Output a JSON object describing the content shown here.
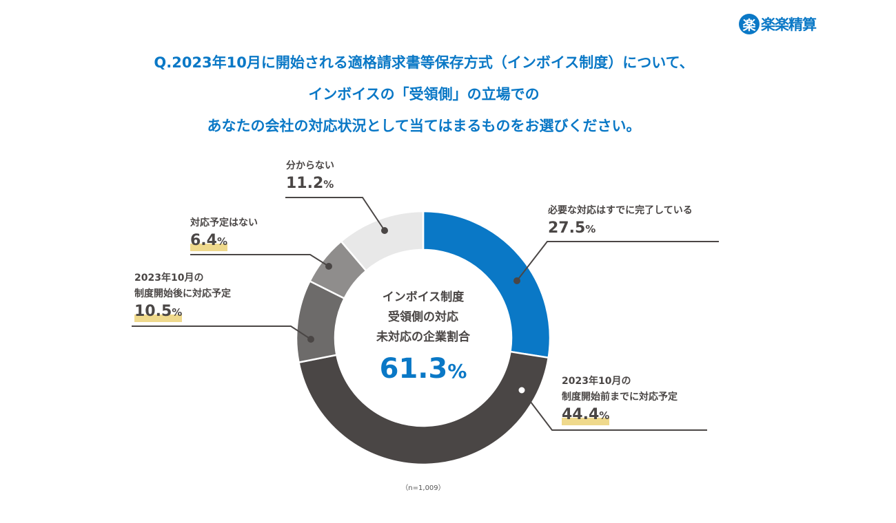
{
  "logo": {
    "mark": "楽",
    "text": "楽楽精算"
  },
  "title_lines": [
    "Q.2023年10月に開始される適格請求書等保存方式（インボイス制度）について、",
    "インボイスの「受領側」の立場での",
    "あなたの会社の対応状況として当てはまるものをお選びください。"
  ],
  "center": {
    "lines": [
      "インボイス制度",
      "受領側の対応",
      "未対応の企業割合"
    ],
    "value": "61.3",
    "unit": "%"
  },
  "note": "（n=1,009）",
  "chart_data": {
    "type": "pie",
    "donut": true,
    "start": "top",
    "direction": "clockwise",
    "unit": "%",
    "slices": [
      {
        "label_lines": [
          "必要な対応はすでに完了している"
        ],
        "value": 27.5,
        "color": "#0a78c6",
        "highlight": false
      },
      {
        "label_lines": [
          "2023年10月の",
          "制度開始前までに対応予定"
        ],
        "value": 44.4,
        "color": "#4a4645",
        "highlight": true
      },
      {
        "label_lines": [
          "2023年10月の",
          "制度開始後に対応予定"
        ],
        "value": 10.5,
        "color": "#6d6b6a",
        "highlight": true
      },
      {
        "label_lines": [
          "対応予定はない"
        ],
        "value": 6.4,
        "color": "#8f8d8c",
        "highlight": true
      },
      {
        "label_lines": [
          "分からない"
        ],
        "value": 11.2,
        "color": "#e8e8e8",
        "highlight": false
      }
    ]
  }
}
